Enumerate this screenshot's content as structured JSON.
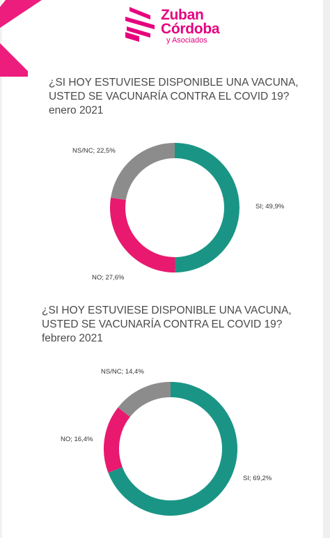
{
  "brand": {
    "name_line1": "Zuban",
    "name_line2": "Córdoba",
    "name_line3": "y Asociados",
    "color": "#e6007e"
  },
  "questions": [
    {
      "text": "¿SI HOY ESTUVIESE DISPONIBLE UNA VACUNA, USTED SE VACUNARÍA CONTRA EL COVID 19?",
      "period": "enero 2021"
    },
    {
      "text": "¿SI HOY ESTUVIESE DISPONIBLE UNA VACUNA, USTED SE VACUNARÍA CONTRA EL COVID 19?",
      "period": "febrero 2021"
    }
  ],
  "chart_data": [
    {
      "type": "pie",
      "style": "donut",
      "period": "enero 2021",
      "slices": [
        {
          "label": "SI; 49,9%",
          "category": "SI",
          "value": 49.9,
          "color": "#1a9585"
        },
        {
          "label": "NO; 27,6%",
          "category": "NO",
          "value": 27.6,
          "color": "#e8196e"
        },
        {
          "label": "NS/NC; 22,5%",
          "category": "NS/NC",
          "value": 22.5,
          "color": "#8c8c8c"
        }
      ]
    },
    {
      "type": "pie",
      "style": "donut",
      "period": "febrero 2021",
      "slices": [
        {
          "label": "SI; 69,2%",
          "category": "SI",
          "value": 69.2,
          "color": "#1a9585"
        },
        {
          "label": "NO; 16,4%",
          "category": "NO",
          "value": 16.4,
          "color": "#e8196e"
        },
        {
          "label": "NS/NC; 14,4%",
          "category": "NS/NC",
          "value": 14.4,
          "color": "#8c8c8c"
        }
      ]
    }
  ]
}
